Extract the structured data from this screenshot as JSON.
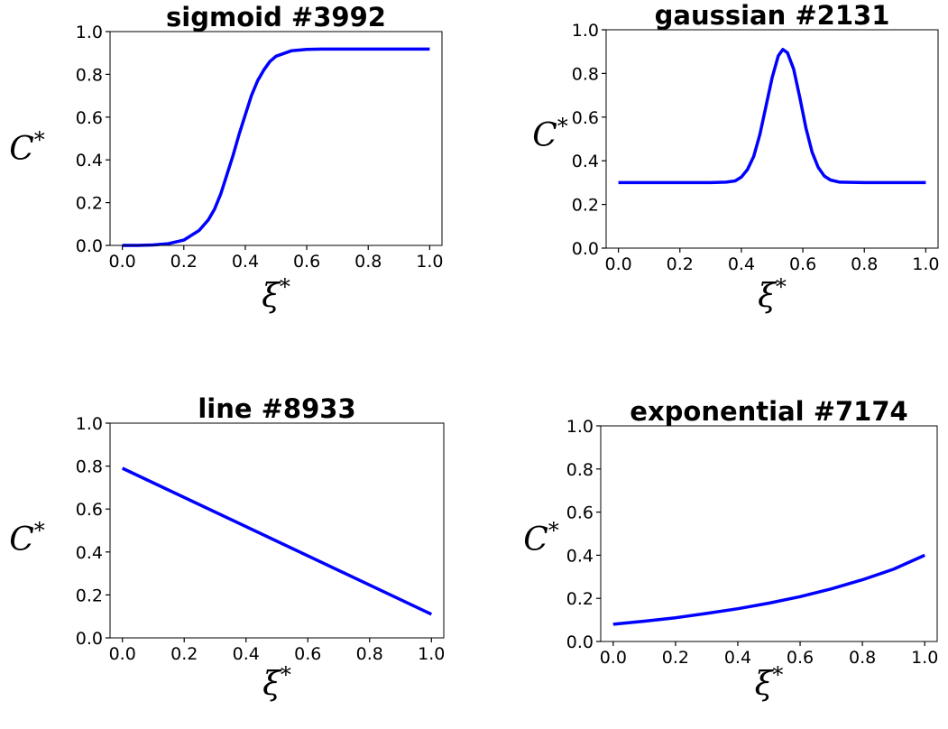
{
  "chart_data": [
    {
      "type": "line",
      "title": "sigmoid #3992",
      "xlabel": "ξ*",
      "ylabel": "C*",
      "xlim": [
        -0.04,
        1.04
      ],
      "ylim": [
        0.0,
        1.0
      ],
      "xticks": [
        "0.0",
        "0.2",
        "0.4",
        "0.6",
        "0.8",
        "1.0"
      ],
      "yticks": [
        "0.0",
        "0.2",
        "0.4",
        "0.6",
        "0.8",
        "1.0"
      ],
      "grid": false,
      "line_color": "#0000ff",
      "series": [
        {
          "x": [
            0.0,
            0.05,
            0.1,
            0.15,
            0.2,
            0.25,
            0.28,
            0.3,
            0.32,
            0.34,
            0.36,
            0.38,
            0.4,
            0.42,
            0.44,
            0.46,
            0.48,
            0.5,
            0.55,
            0.6,
            0.65,
            0.7,
            0.8,
            0.9,
            1.0
          ],
          "y": [
            0.0,
            0.0,
            0.002,
            0.008,
            0.025,
            0.07,
            0.12,
            0.17,
            0.24,
            0.33,
            0.42,
            0.52,
            0.61,
            0.7,
            0.77,
            0.82,
            0.86,
            0.885,
            0.91,
            0.917,
            0.918,
            0.918,
            0.918,
            0.918,
            0.918
          ]
        }
      ]
    },
    {
      "type": "line",
      "title": "gaussian #2131",
      "xlabel": "ξ*",
      "ylabel": "C*",
      "xlim": [
        -0.04,
        1.04
      ],
      "ylim": [
        0.0,
        1.0
      ],
      "xticks": [
        "0.0",
        "0.2",
        "0.4",
        "0.6",
        "0.8",
        "1.0"
      ],
      "yticks": [
        "0.0",
        "0.2",
        "0.4",
        "0.6",
        "0.8",
        "1.0"
      ],
      "grid": false,
      "line_color": "#0000ff",
      "series": [
        {
          "x": [
            0.0,
            0.1,
            0.2,
            0.3,
            0.35,
            0.38,
            0.4,
            0.42,
            0.44,
            0.46,
            0.48,
            0.5,
            0.52,
            0.535,
            0.55,
            0.57,
            0.59,
            0.61,
            0.63,
            0.65,
            0.67,
            0.69,
            0.72,
            0.8,
            0.9,
            1.0
          ],
          "y": [
            0.3,
            0.3,
            0.3,
            0.3,
            0.302,
            0.308,
            0.325,
            0.36,
            0.42,
            0.52,
            0.65,
            0.78,
            0.88,
            0.91,
            0.895,
            0.82,
            0.69,
            0.55,
            0.44,
            0.37,
            0.33,
            0.312,
            0.302,
            0.3,
            0.3,
            0.3
          ]
        }
      ]
    },
    {
      "type": "line",
      "title": "line #8933",
      "xlabel": "ξ*",
      "ylabel": "C*",
      "xlim": [
        -0.04,
        1.04
      ],
      "ylim": [
        0.0,
        1.0
      ],
      "xticks": [
        "0.0",
        "0.2",
        "0.4",
        "0.6",
        "0.8",
        "1.0"
      ],
      "yticks": [
        "0.0",
        "0.2",
        "0.4",
        "0.6",
        "0.8",
        "1.0"
      ],
      "grid": false,
      "line_color": "#0000ff",
      "series": [
        {
          "x": [
            0.0,
            1.0
          ],
          "y": [
            0.79,
            0.11
          ]
        }
      ]
    },
    {
      "type": "line",
      "title": "exponential #7174",
      "xlabel": "ξ*",
      "ylabel": "C*",
      "xlim": [
        -0.04,
        1.04
      ],
      "ylim": [
        0.0,
        1.0
      ],
      "xticks": [
        "0.0",
        "0.2",
        "0.4",
        "0.6",
        "0.8",
        "1.0"
      ],
      "yticks": [
        "0.0",
        "0.2",
        "0.4",
        "0.6",
        "0.8",
        "1.0"
      ],
      "grid": false,
      "line_color": "#0000ff",
      "series": [
        {
          "x": [
            0.0,
            0.1,
            0.2,
            0.3,
            0.4,
            0.5,
            0.6,
            0.7,
            0.8,
            0.9,
            1.0
          ],
          "y": [
            0.08,
            0.094,
            0.11,
            0.13,
            0.152,
            0.178,
            0.208,
            0.244,
            0.286,
            0.335,
            0.4
          ]
        }
      ]
    }
  ]
}
